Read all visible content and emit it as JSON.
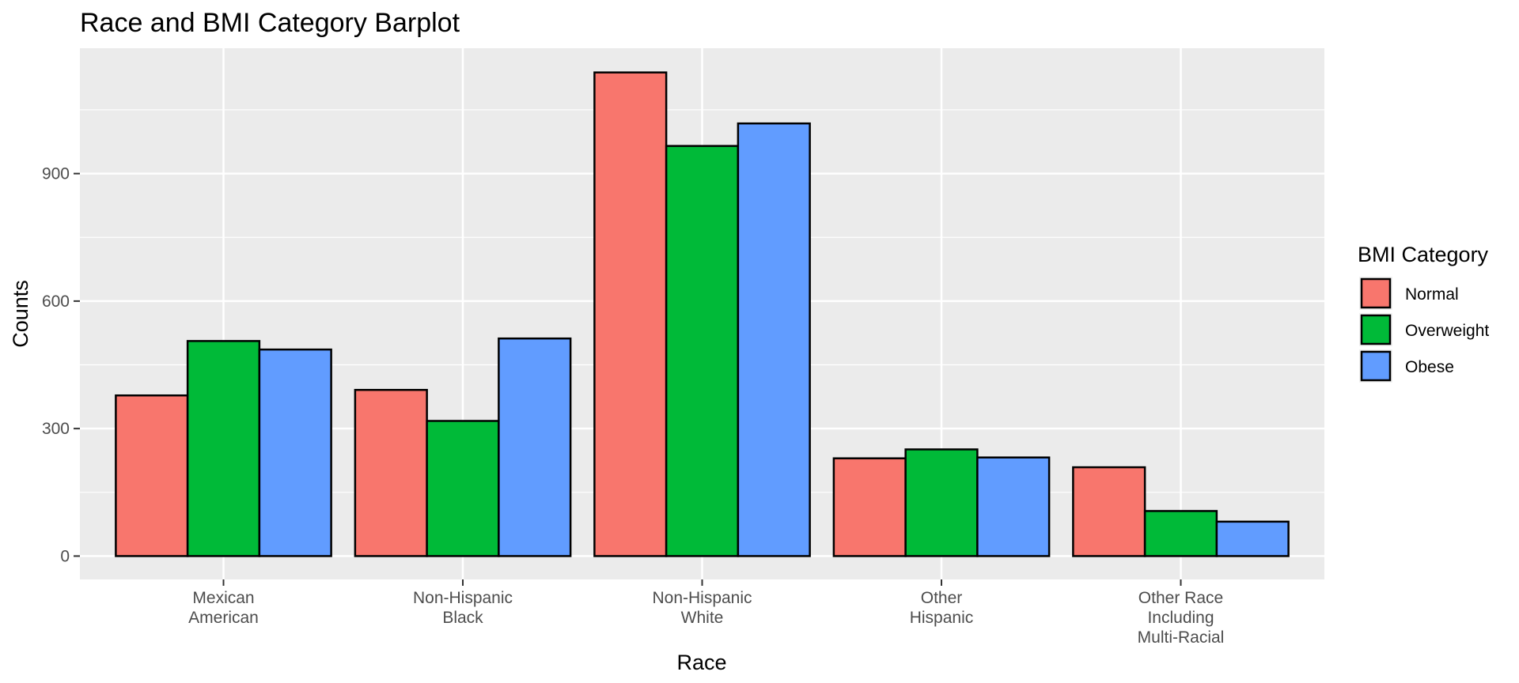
{
  "chart_data": {
    "type": "bar",
    "title": "Race and BMI Category Barplot",
    "xlabel": "Race",
    "ylabel": "Counts",
    "categories": [
      [
        "Mexican",
        "American"
      ],
      [
        "Non-Hispanic",
        "Black"
      ],
      [
        "Non-Hispanic",
        "White"
      ],
      [
        "Other",
        "Hispanic"
      ],
      [
        "Other Race",
        "Including",
        "Multi-Racial"
      ]
    ],
    "series": [
      {
        "name": "Normal",
        "color": "#F8766D",
        "values": [
          378,
          391,
          1138,
          230,
          209
        ]
      },
      {
        "name": "Overweight",
        "color": "#00BA38",
        "values": [
          506,
          318,
          965,
          251,
          106
        ]
      },
      {
        "name": "Obese",
        "color": "#619CFF",
        "values": [
          486,
          512,
          1018,
          232,
          81
        ]
      }
    ],
    "yticks": [
      0,
      300,
      600,
      900
    ],
    "ylim": [
      -55,
      1195
    ],
    "grid": true,
    "legend": {
      "title": "BMI Category",
      "placement": "right"
    }
  }
}
